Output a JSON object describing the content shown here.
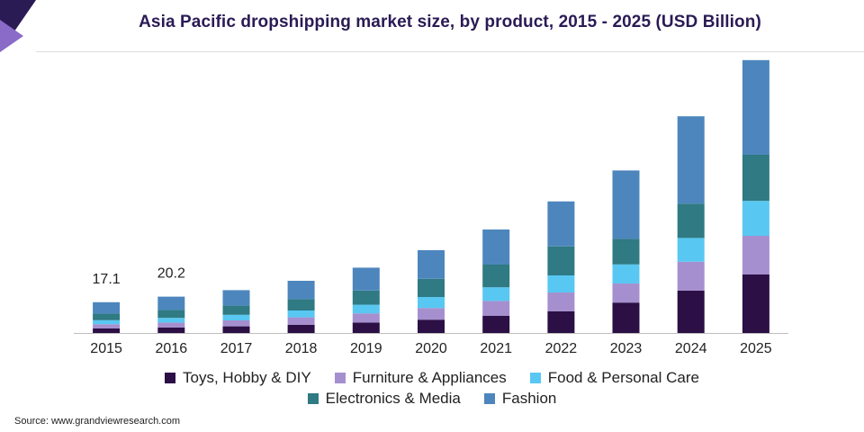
{
  "chart_data": {
    "type": "bar",
    "stacked": true,
    "title": "Asia Pacific dropshipping market size, by product, 2015 - 2025 (USD Billion)",
    "xlabel": "",
    "ylabel": "",
    "ylim": [
      0,
      150
    ],
    "grid": false,
    "legend_position": "bottom",
    "categories": [
      "2015",
      "2016",
      "2017",
      "2018",
      "2019",
      "2020",
      "2021",
      "2022",
      "2023",
      "2024",
      "2025"
    ],
    "series": [
      {
        "name": "Toys, Hobby & DIY",
        "color": "#2b0f45",
        "values": [
          2.6,
          3.1,
          3.7,
          4.6,
          5.8,
          7.4,
          9.5,
          12.1,
          16.9,
          23.6,
          32.5
        ]
      },
      {
        "name": "Furniture & Appliances",
        "color": "#a68fcf",
        "values": [
          2.3,
          2.7,
          3.3,
          4.1,
          5.1,
          6.5,
          8.3,
          10.4,
          10.6,
          16.0,
          21.5
        ]
      },
      {
        "name": "Food & Personal Care",
        "color": "#58c8f2",
        "values": [
          2.2,
          2.6,
          3.1,
          3.8,
          4.8,
          6.1,
          7.6,
          9.5,
          10.6,
          13.2,
          19.4
        ]
      },
      {
        "name": "Electronics & Media",
        "color": "#2f7a83",
        "values": [
          3.7,
          4.4,
          5.1,
          6.3,
          7.9,
          10.1,
          12.6,
          16.1,
          14.2,
          19.1,
          25.6
        ]
      },
      {
        "name": "Fashion",
        "color": "#4d86bd",
        "values": [
          6.3,
          7.4,
          8.6,
          10.2,
          12.7,
          15.9,
          19.5,
          25.0,
          38.0,
          48.5,
          52.6
        ]
      }
    ],
    "data_labels": [
      {
        "category": "2015",
        "text": "17.1"
      },
      {
        "category": "2016",
        "text": "20.2"
      }
    ]
  },
  "title": "Asia Pacific dropshipping market size, by product, 2015 - 2025 (USD Billion)",
  "legend": {
    "row1": [
      {
        "label": "Toys, Hobby & DIY",
        "color": "#2b0f45"
      },
      {
        "label": "Furniture & Appliances",
        "color": "#a68fcf"
      },
      {
        "label": "Food & Personal Care",
        "color": "#58c8f2"
      }
    ],
    "row2": [
      {
        "label": "Electronics & Media",
        "color": "#2f7a83"
      },
      {
        "label": "Fashion",
        "color": "#4d86bd"
      }
    ]
  },
  "source": "Source: www.grandviewresearch.com",
  "badge_colors": {
    "dark": "#2a1b55",
    "light": "#8a6bc8"
  }
}
